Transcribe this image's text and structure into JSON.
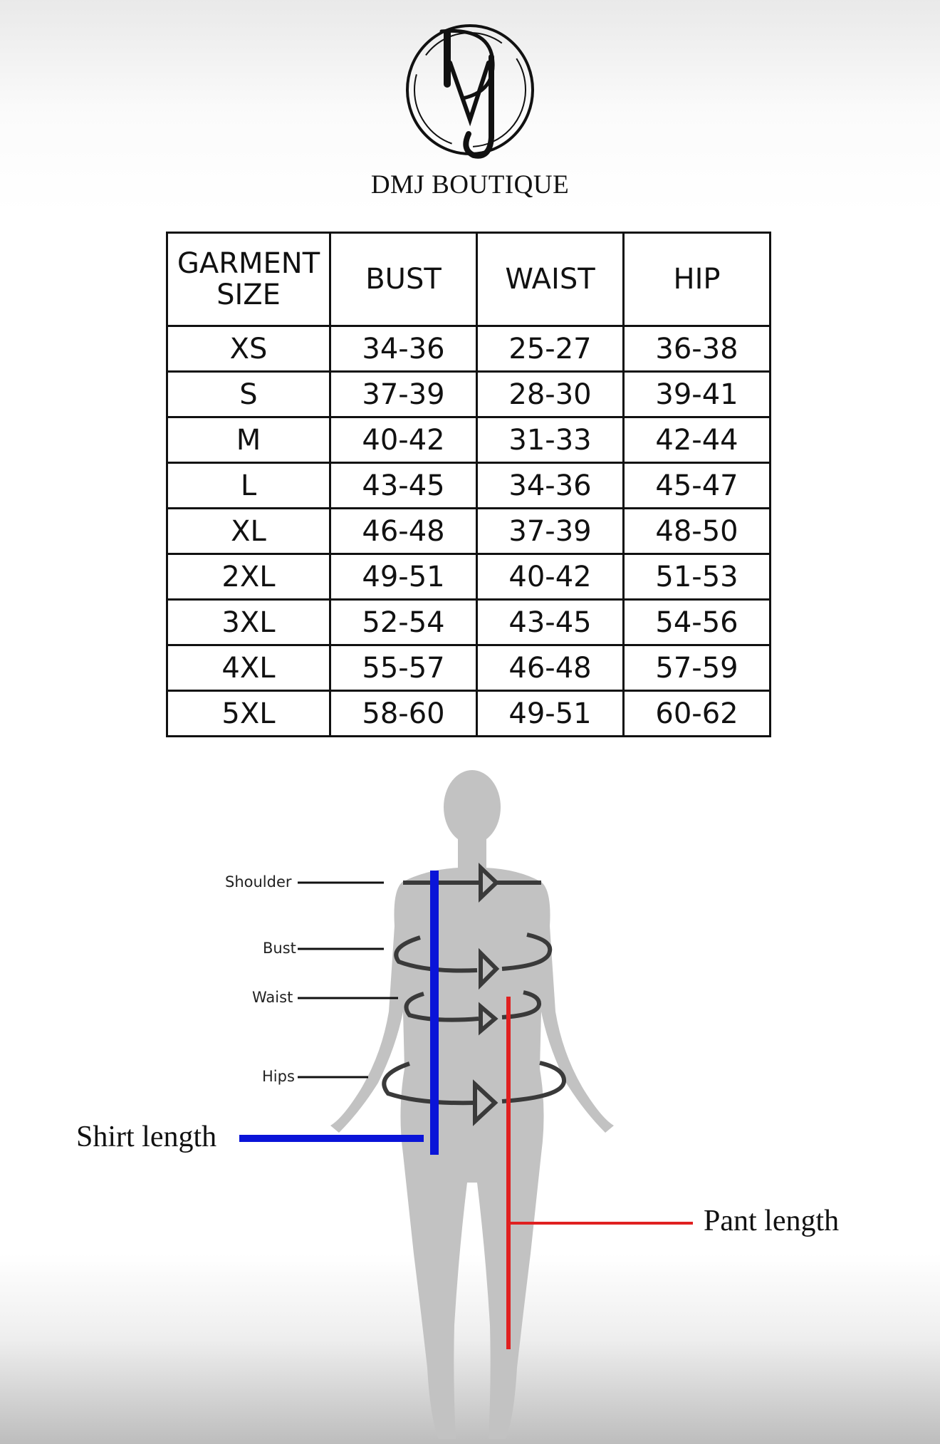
{
  "brand": {
    "logo_text": "DMJ",
    "name": "DMJ BOUTIQUE"
  },
  "size_chart": {
    "headers": [
      "GARMENT SIZE",
      "BUST",
      "WAIST",
      "HIP"
    ],
    "rows": [
      [
        "XS",
        "34-36",
        "25-27",
        "36-38"
      ],
      [
        "S",
        "37-39",
        "28-30",
        "39-41"
      ],
      [
        "M",
        "40-42",
        "31-33",
        "42-44"
      ],
      [
        "L",
        "43-45",
        "34-36",
        "45-47"
      ],
      [
        "XL",
        "46-48",
        "37-39",
        "48-50"
      ],
      [
        "2XL",
        "49-51",
        "40-42",
        "51-53"
      ],
      [
        "3XL",
        "52-54",
        "43-45",
        "54-56"
      ],
      [
        "4XL",
        "55-57",
        "46-48",
        "57-59"
      ],
      [
        "5XL",
        "58-60",
        "49-51",
        "60-62"
      ]
    ]
  },
  "diagram": {
    "labels": {
      "shoulder": "Shoulder",
      "bust": "Bust",
      "waist": "Waist",
      "hips": "Hips",
      "shirt_length": "Shirt length",
      "pant_length": "Pant length"
    },
    "colors": {
      "body": "#c2c2c2",
      "shirt_line": "#0a14d8",
      "pant_line": "#e02020",
      "rings": "#3a3a3a"
    }
  }
}
